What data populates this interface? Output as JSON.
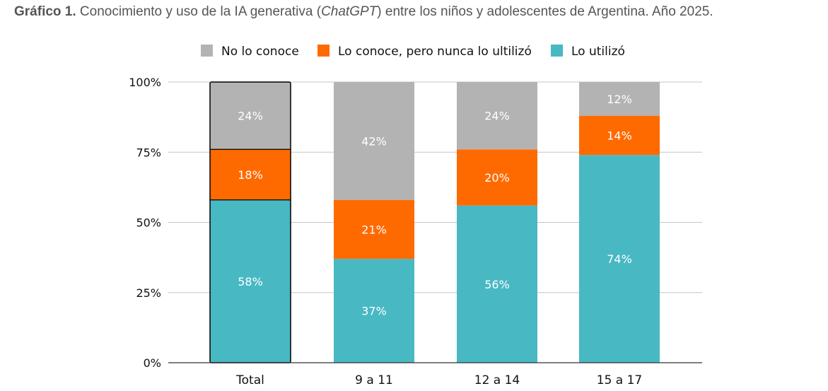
{
  "title": {
    "prefix": "Gráfico 1.",
    "part1": " Conocimiento y uso de la IA generativa (",
    "italic": "ChatGPT",
    "part2": ") entre los niños y adolescentes de Argentina. Año 2025."
  },
  "chart_data": {
    "type": "bar",
    "stacked": true,
    "categories": [
      "Total",
      "9 a 11",
      "12 a 14",
      "15 a 17"
    ],
    "series": [
      {
        "name": "Lo utilizó",
        "color": "#48b8c2",
        "values": [
          58,
          37,
          56,
          74
        ],
        "labels": [
          "58%",
          "37%",
          "56%",
          "74%"
        ]
      },
      {
        "name": "Lo conoce, pero nunca lo ultilizó",
        "color": "#ff6a00",
        "values": [
          18,
          21,
          20,
          14
        ],
        "labels": [
          "18%",
          "21%",
          "20%",
          "14%"
        ]
      },
      {
        "name": "No lo conoce",
        "color": "#b3b3b3",
        "values": [
          24,
          42,
          24,
          12
        ],
        "labels": [
          "24%",
          "42%",
          "24%",
          "12%"
        ]
      }
    ],
    "legend_order": [
      "No lo conoce",
      "Lo conoce, pero nunca lo ultilizó",
      "Lo utilizó"
    ],
    "legend_position": "top",
    "y_ticks": [
      "0%",
      "25%",
      "50%",
      "75%",
      "100%"
    ],
    "y_tick_values": [
      0,
      25,
      50,
      75,
      100
    ],
    "ylim": [
      0,
      100
    ],
    "grid": true,
    "highlighted_category": "Total",
    "xlabel": "",
    "ylabel": ""
  }
}
